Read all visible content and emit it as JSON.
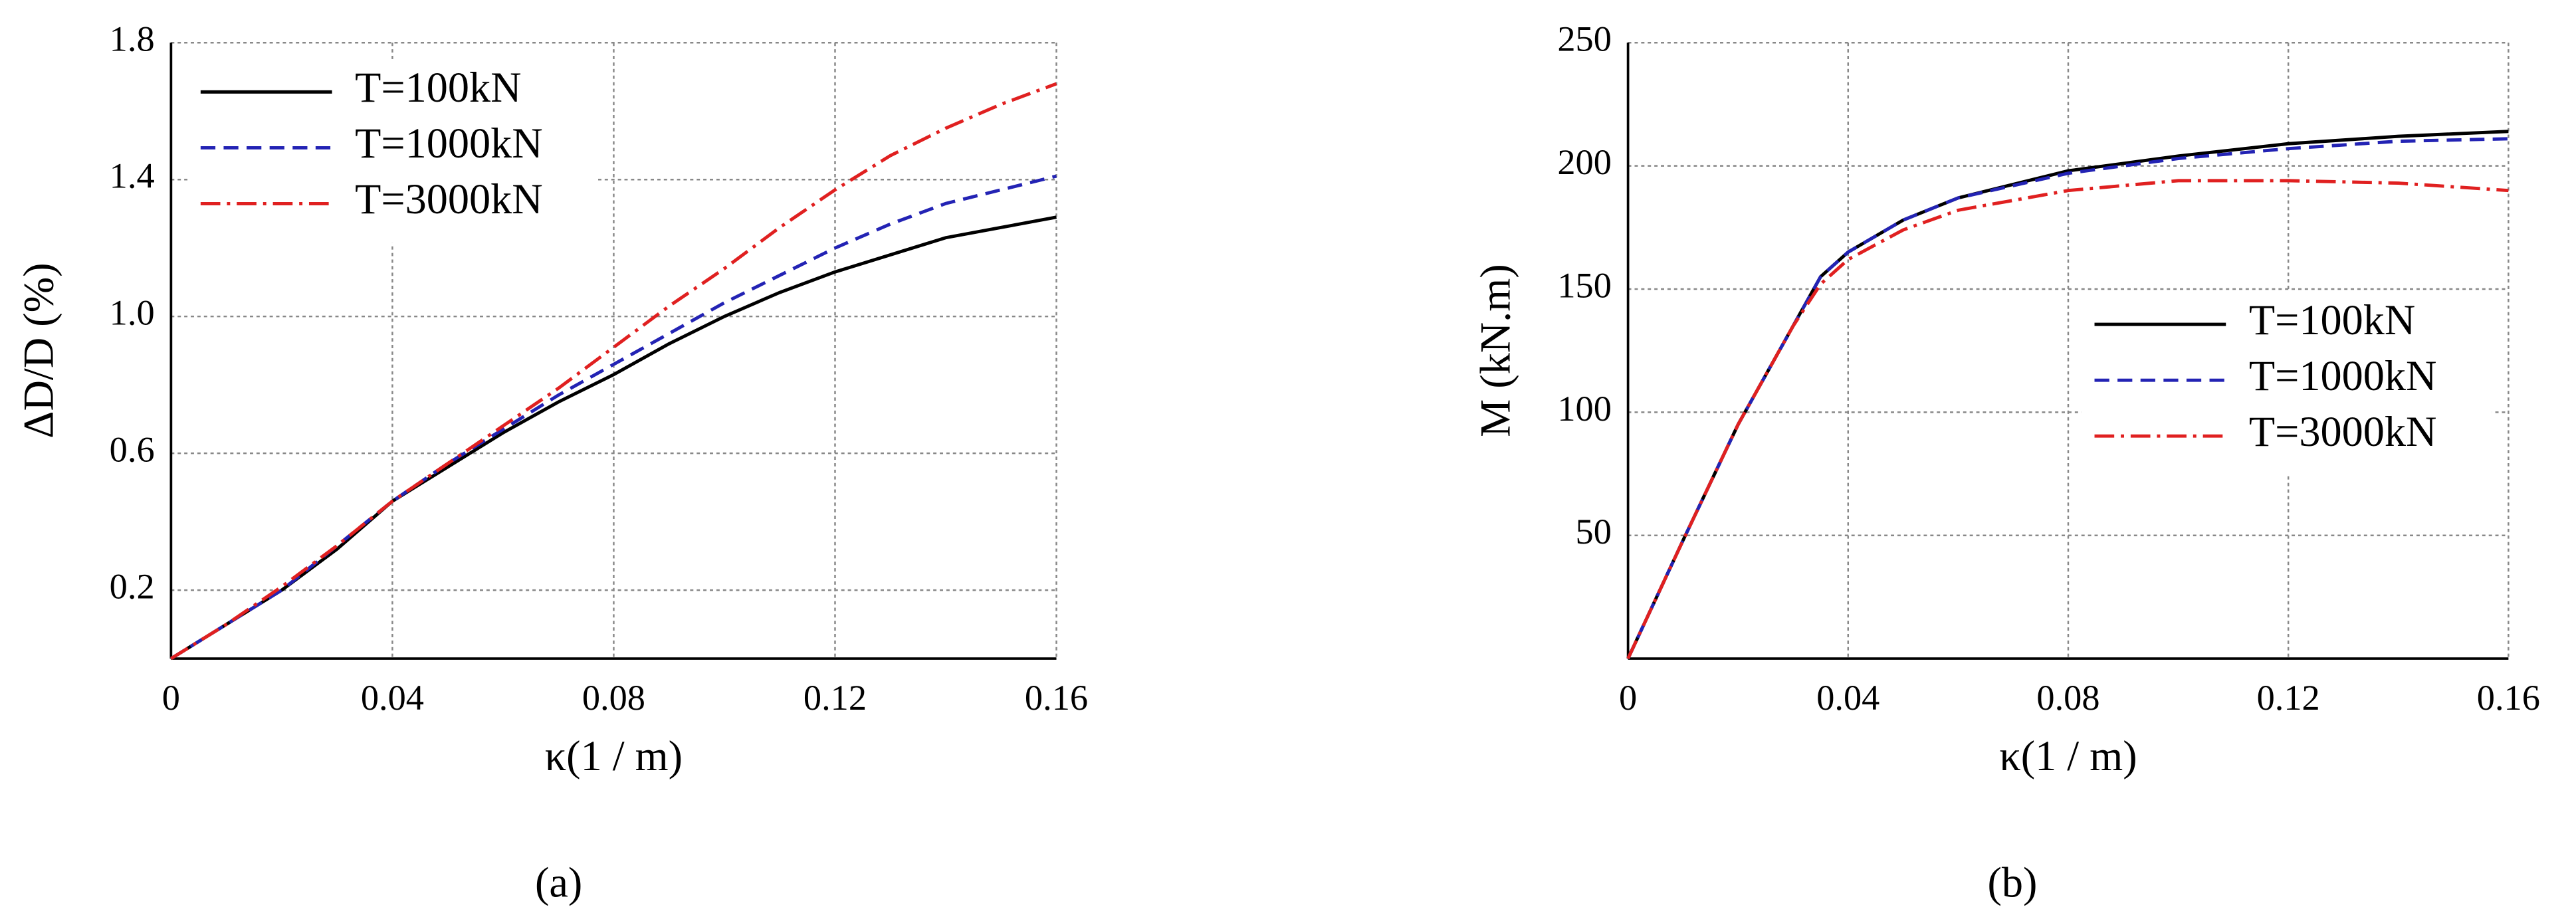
{
  "chart_data": [
    {
      "type": "line",
      "caption": "(a)",
      "ylabel": "ΔD/D (%)",
      "xlabel": "κ(1 / m)",
      "x": [
        0,
        0.01,
        0.02,
        0.03,
        0.04,
        0.05,
        0.06,
        0.07,
        0.08,
        0.09,
        0.1,
        0.11,
        0.12,
        0.13,
        0.14,
        0.15,
        0.16
      ],
      "series": [
        {
          "name": "T=100kN",
          "color": "#000000",
          "style": "solid",
          "values": [
            0,
            0.1,
            0.2,
            0.32,
            0.46,
            0.56,
            0.66,
            0.75,
            0.83,
            0.92,
            1.0,
            1.07,
            1.13,
            1.18,
            1.23,
            1.26,
            1.29
          ]
        },
        {
          "name": "T=1000kN",
          "color": "#2323b4",
          "style": "dashed",
          "values": [
            0,
            0.1,
            0.2,
            0.33,
            0.46,
            0.57,
            0.67,
            0.77,
            0.86,
            0.95,
            1.04,
            1.12,
            1.2,
            1.27,
            1.33,
            1.37,
            1.41
          ]
        },
        {
          "name": "T=3000kN",
          "color": "#e02020",
          "style": "dashdot",
          "values": [
            0,
            0.1,
            0.21,
            0.33,
            0.46,
            0.57,
            0.68,
            0.79,
            0.91,
            1.03,
            1.14,
            1.26,
            1.37,
            1.47,
            1.55,
            1.62,
            1.68
          ]
        }
      ],
      "xlim": [
        0,
        0.16
      ],
      "xticks": [
        0,
        0.04,
        0.08,
        0.12,
        0.16
      ],
      "ylim": [
        0,
        1.8
      ],
      "yticks": [
        0.2,
        0.6,
        {
          "value": 1,
          "label": "1.0"
        },
        1.4,
        1.8
      ],
      "grid": true,
      "legend": "upper left"
    },
    {
      "type": "line",
      "caption": "(b)",
      "ylabel": "M (kN.m)",
      "xlabel": "κ(1 / m)",
      "x": [
        0,
        0.01,
        0.02,
        0.03,
        0.035,
        0.04,
        0.05,
        0.06,
        0.08,
        0.1,
        0.12,
        0.14,
        0.16
      ],
      "series": [
        {
          "name": "T=100kN",
          "color": "#000000",
          "style": "solid",
          "values": [
            0,
            48,
            95,
            135,
            155,
            165,
            178,
            187,
            198,
            204,
            209,
            212,
            214
          ]
        },
        {
          "name": "T=1000kN",
          "color": "#2323b4",
          "style": "dashed",
          "values": [
            0,
            48,
            95,
            135,
            155,
            165,
            178,
            187,
            197,
            203,
            207,
            210,
            211
          ]
        },
        {
          "name": "T=3000kN",
          "color": "#e02020",
          "style": "dashdot",
          "values": [
            0,
            48,
            95,
            135,
            152,
            162,
            174,
            182,
            190,
            194,
            194,
            193,
            190
          ]
        }
      ],
      "xlim": [
        0,
        0.16
      ],
      "xticks": [
        0,
        0.04,
        0.08,
        0.12,
        0.16
      ],
      "ylim": [
        0,
        250
      ],
      "yticks": [
        50,
        100,
        150,
        200,
        250
      ],
      "grid": true,
      "legend": "center right"
    }
  ]
}
